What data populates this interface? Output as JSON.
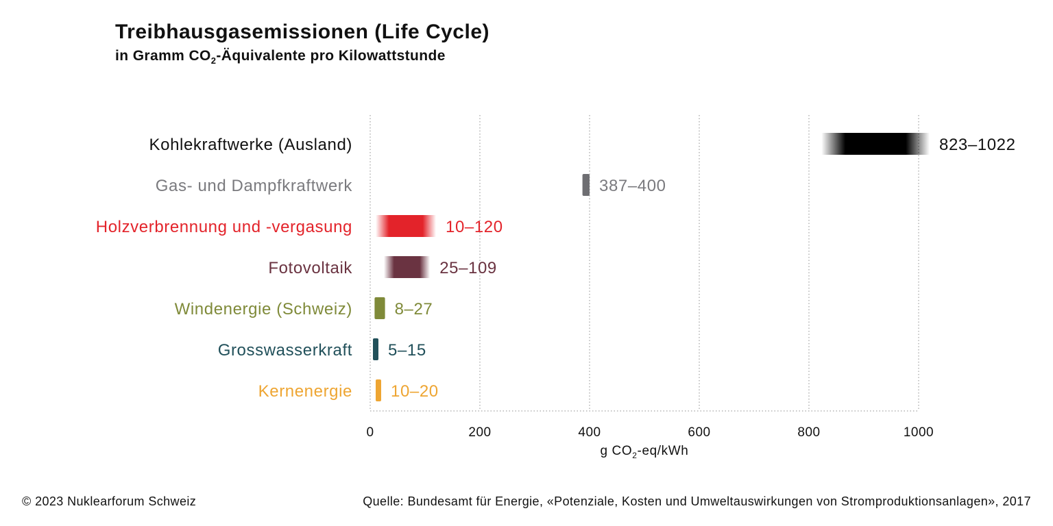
{
  "header": {
    "title": "Treibhausgasemissionen (Life Cycle)",
    "subtitle_pre": "in Gramm CO",
    "subtitle_sub": "2",
    "subtitle_post": "-Äquivalente pro Kilowattstunde"
  },
  "chart_data": {
    "type": "bar",
    "orientation": "horizontal-range",
    "title": "Treibhausgasemissionen (Life Cycle)",
    "xlim": [
      0,
      1000
    ],
    "xticks": [
      0,
      200,
      400,
      600,
      800,
      1000
    ],
    "xlabel_pre": "g CO",
    "xlabel_sub": "2",
    "xlabel_post": "-eq/kWh",
    "grid": true,
    "categories": [
      {
        "name": "Kohlekraftwerke (Ausland)",
        "min": 823,
        "max": 1022,
        "label": "823–1022",
        "color": "#000000",
        "label_color": "#111111"
      },
      {
        "name": "Gas- und Dampfkraftwerk",
        "min": 387,
        "max": 400,
        "label": "387–400",
        "color": "#6e6e72",
        "label_color": "#7a7a7e"
      },
      {
        "name": "Holzverbrennung und -vergasung",
        "min": 10,
        "max": 120,
        "label": "10–120",
        "color": "#e3232a",
        "label_color": "#e3232a"
      },
      {
        "name": "Fotovoltaik",
        "min": 25,
        "max": 109,
        "label": "25–109",
        "color": "#6a3341",
        "label_color": "#6a3341"
      },
      {
        "name": "Windenergie (Schweiz)",
        "min": 8,
        "max": 27,
        "label": "8–27",
        "color": "#7f8a39",
        "label_color": "#7f8a39"
      },
      {
        "name": "Grosswasserkraft",
        "min": 5,
        "max": 15,
        "label": "5–15",
        "color": "#21505a",
        "label_color": "#21505a"
      },
      {
        "name": "Kernenergie",
        "min": 10,
        "max": 20,
        "label": "10–20",
        "color": "#eea532",
        "label_color": "#eea532"
      }
    ]
  },
  "footer": {
    "copyright": "© 2023 Nuklearforum Schweiz",
    "source": "Quelle: Bundesamt für Energie, «Potenziale, Kosten und Umweltauswirkungen von Stromproduktionsanlagen», 2017"
  }
}
